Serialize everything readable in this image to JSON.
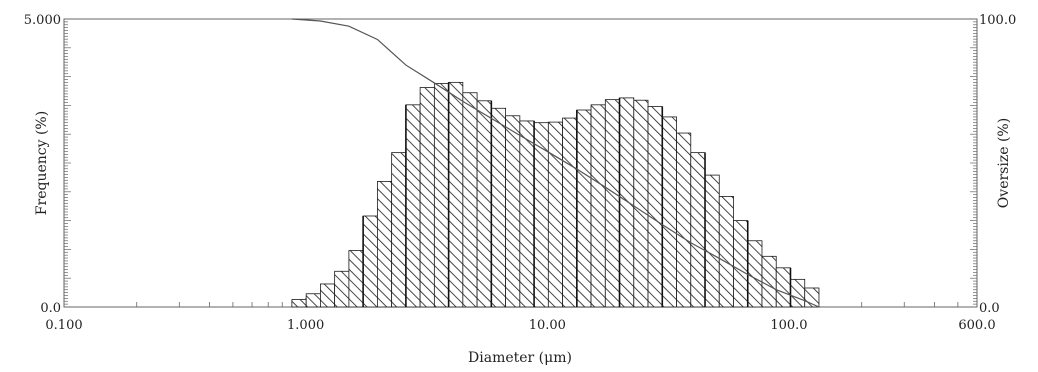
{
  "chart_data": {
    "type": "bar",
    "xlabel": "Diameter (μm)",
    "ylabel": "Frequency (%)",
    "y2label": "Oversize (%)",
    "x_scale": "log",
    "xlim": [
      0.1,
      600.0
    ],
    "ylim": [
      0.0,
      5.0
    ],
    "y2lim": [
      0.0,
      100.0
    ],
    "x_tick_labels": [
      {
        "value": 0.1,
        "label": "0.100"
      },
      {
        "value": 1.0,
        "label": "1.000"
      },
      {
        "value": 10.0,
        "label": "10.00"
      },
      {
        "value": 100.0,
        "label": "100.0"
      },
      {
        "value": 600.0,
        "label": "600.0"
      }
    ],
    "y_tick_labels": [
      {
        "value": 0.0,
        "label": "0.0"
      },
      {
        "value": 5.0,
        "label": "5.000"
      }
    ],
    "y2_tick_labels": [
      {
        "value": 0.0,
        "label": "0.0"
      },
      {
        "value": 100.0,
        "label": "100.0"
      }
    ],
    "grid": false,
    "fill_pattern": "diagonal-hatch",
    "series": [
      {
        "type": "bar",
        "bin_edges": [
          0.877,
          1.005,
          1.151,
          1.318,
          1.51,
          1.729,
          1.981,
          2.269,
          2.599,
          2.976,
          3.409,
          3.905,
          4.472,
          5.122,
          5.867,
          6.72,
          7.697,
          8.816,
          10.1,
          11.57,
          13.25,
          15.17,
          17.38,
          19.9,
          22.8,
          26.11,
          29.91,
          34.26,
          39.24,
          44.94,
          51.47,
          58.95,
          67.52,
          77.34,
          88.58,
          101.46,
          116.21,
          133.1
        ],
        "values": [
          0.13,
          0.23,
          0.4,
          0.62,
          0.98,
          1.58,
          2.18,
          2.68,
          3.51,
          3.81,
          3.88,
          3.9,
          3.72,
          3.58,
          3.45,
          3.32,
          3.23,
          3.2,
          3.21,
          3.28,
          3.42,
          3.51,
          3.6,
          3.63,
          3.59,
          3.48,
          3.3,
          3.02,
          2.68,
          2.29,
          1.92,
          1.5,
          1.15,
          0.88,
          0.68,
          0.48,
          0.33
        ]
      },
      {
        "type": "line",
        "axis": "y2",
        "x": [
          0.877,
          1.151,
          1.51,
          1.981,
          2.599,
          3.409,
          4.472,
          5.867,
          7.697,
          10.1,
          13.25,
          17.38,
          22.8,
          29.91,
          39.24,
          51.47,
          67.52,
          88.58,
          116.21,
          133.1
        ],
        "values": [
          100.0,
          99.3,
          97.5,
          92.9,
          84.0,
          77.8,
          71.4,
          65.5,
          59.6,
          53.8,
          47.9,
          41.6,
          35.1,
          28.6,
          22.3,
          16.9,
          11.3,
          6.0,
          2.2,
          0.0
        ]
      }
    ]
  }
}
